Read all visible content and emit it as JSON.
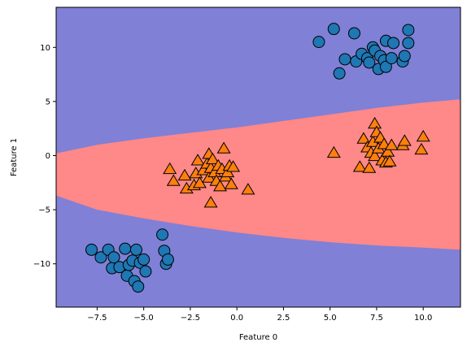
{
  "chart_data": {
    "type": "scatter",
    "title": "",
    "xlabel": "Feature 0",
    "ylabel": "Feature 1",
    "xlim": [
      -9.7,
      12.0
    ],
    "ylim": [
      -14.0,
      13.7
    ],
    "xticks": [
      -7.5,
      -5.0,
      -2.5,
      0.0,
      2.5,
      5.0,
      7.5,
      10.0
    ],
    "xtick_labels": [
      "−7.5",
      "−5.0",
      "−2.5",
      "0.0",
      "2.5",
      "5.0",
      "7.5",
      "10.0"
    ],
    "yticks": [
      -10,
      -5,
      0,
      5,
      10
    ],
    "ytick_labels": [
      "−10",
      "−5",
      "0",
      "5",
      "10"
    ],
    "grid": false,
    "legend": "none",
    "decision_regions": {
      "background_class0_color": "#8080d6",
      "class1_region_color": "#ff8888",
      "upper_boundary": [
        [
          -9.7,
          0.2
        ],
        [
          -7.5,
          1.0
        ],
        [
          -5.0,
          1.6
        ],
        [
          -2.5,
          2.1
        ],
        [
          0.0,
          2.6
        ],
        [
          2.5,
          3.2
        ],
        [
          5.0,
          3.8
        ],
        [
          7.5,
          4.4
        ],
        [
          10.0,
          4.9
        ],
        [
          12.0,
          5.2
        ]
      ],
      "lower_boundary": [
        [
          -9.7,
          -3.7
        ],
        [
          -7.5,
          -5.0
        ],
        [
          -5.0,
          -5.8
        ],
        [
          -2.5,
          -6.5
        ],
        [
          0.0,
          -7.1
        ],
        [
          2.5,
          -7.6
        ],
        [
          5.0,
          -8.0
        ],
        [
          7.5,
          -8.3
        ],
        [
          10.0,
          -8.5
        ],
        [
          12.0,
          -8.7
        ]
      ]
    },
    "series": [
      {
        "marker": "circle",
        "color": "#1f77b4",
        "points": [
          [
            4.4,
            10.5
          ],
          [
            5.2,
            11.7
          ],
          [
            6.3,
            11.3
          ],
          [
            5.8,
            8.9
          ],
          [
            6.4,
            8.7
          ],
          [
            5.5,
            7.6
          ],
          [
            6.7,
            9.4
          ],
          [
            7.0,
            9.0
          ],
          [
            7.1,
            8.6
          ],
          [
            7.3,
            10.0
          ],
          [
            7.4,
            9.7
          ],
          [
            7.6,
            8.0
          ],
          [
            7.7,
            9.2
          ],
          [
            7.9,
            8.8
          ],
          [
            8.0,
            8.2
          ],
          [
            8.0,
            10.6
          ],
          [
            8.4,
            10.4
          ],
          [
            8.3,
            9.0
          ],
          [
            8.9,
            8.7
          ],
          [
            9.0,
            9.2
          ],
          [
            9.2,
            11.6
          ],
          [
            9.2,
            10.4
          ],
          [
            -7.8,
            -8.7
          ],
          [
            -7.3,
            -9.4
          ],
          [
            -6.9,
            -8.7
          ],
          [
            -6.7,
            -10.4
          ],
          [
            -6.6,
            -9.4
          ],
          [
            -6.3,
            -10.3
          ],
          [
            -6.0,
            -8.6
          ],
          [
            -5.9,
            -11.1
          ],
          [
            -5.8,
            -10.1
          ],
          [
            -5.6,
            -9.7
          ],
          [
            -5.5,
            -11.6
          ],
          [
            -5.4,
            -8.7
          ],
          [
            -5.3,
            -12.1
          ],
          [
            -5.2,
            -9.9
          ],
          [
            -5.0,
            -9.6
          ],
          [
            -4.9,
            -10.7
          ],
          [
            -4.0,
            -7.3
          ],
          [
            -3.9,
            -8.8
          ],
          [
            -3.8,
            -10.0
          ],
          [
            -3.7,
            -9.6
          ]
        ]
      },
      {
        "marker": "triangle",
        "color": "#ff7f0e",
        "points": [
          [
            -3.6,
            -1.3
          ],
          [
            -3.4,
            -2.4
          ],
          [
            -2.8,
            -1.9
          ],
          [
            -2.7,
            -3.1
          ],
          [
            -2.3,
            -2.8
          ],
          [
            -2.2,
            -1.7
          ],
          [
            -2.1,
            -0.5
          ],
          [
            -2.0,
            -2.6
          ],
          [
            -1.8,
            -1.4
          ],
          [
            -1.6,
            -0.8
          ],
          [
            -1.5,
            0.1
          ],
          [
            -1.5,
            -2.1
          ],
          [
            -1.4,
            -1.2
          ],
          [
            -1.4,
            -4.4
          ],
          [
            -1.3,
            -0.4
          ],
          [
            -1.2,
            -1.6
          ],
          [
            -1.1,
            -2.4
          ],
          [
            -1.0,
            -1.0
          ],
          [
            -0.9,
            -2.9
          ],
          [
            -0.8,
            -1.3
          ],
          [
            -0.7,
            0.6
          ],
          [
            -0.6,
            -2.0
          ],
          [
            -0.5,
            -1.6
          ],
          [
            -0.4,
            -1.0
          ],
          [
            -0.3,
            -2.7
          ],
          [
            -0.2,
            -1.1
          ],
          [
            0.6,
            -3.2
          ],
          [
            5.2,
            0.2
          ],
          [
            6.6,
            -1.1
          ],
          [
            6.8,
            1.5
          ],
          [
            7.0,
            0.7
          ],
          [
            7.1,
            -1.2
          ],
          [
            7.2,
            0.2
          ],
          [
            7.3,
            1.2
          ],
          [
            7.4,
            -0.1
          ],
          [
            7.4,
            2.9
          ],
          [
            7.5,
            2.1
          ],
          [
            7.6,
            0.6
          ],
          [
            7.7,
            1.6
          ],
          [
            7.8,
            -0.5
          ],
          [
            7.9,
            1.0
          ],
          [
            8.0,
            -0.7
          ],
          [
            8.1,
            0.3
          ],
          [
            8.2,
            -0.6
          ],
          [
            8.3,
            0.9
          ],
          [
            8.9,
            0.9
          ],
          [
            9.0,
            1.3
          ],
          [
            9.9,
            0.5
          ],
          [
            10.0,
            1.7
          ]
        ]
      }
    ]
  }
}
